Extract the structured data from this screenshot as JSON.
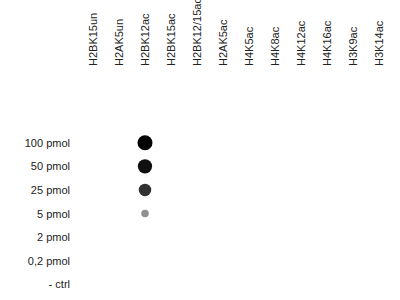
{
  "chart_data": {
    "type": "heatmap",
    "x": [
      "H2BK15un",
      "H2AK5un",
      "H2BK12ac",
      "H2BK15ac",
      "H2BK12/15ac",
      "H2AK5ac",
      "H4K5ac",
      "H4K8ac",
      "H4K12ac",
      "H4K16ac",
      "H3K9ac",
      "H3K14ac"
    ],
    "y": [
      "100 pmol",
      "50 pmol",
      "25 pmol",
      "5 pmol",
      "2 pmol",
      "0,2 pmol",
      "- ctrl"
    ],
    "values": [
      [
        0,
        0,
        100,
        0,
        0,
        0,
        0,
        0,
        0,
        0,
        0,
        0
      ],
      [
        0,
        0,
        90,
        0,
        0,
        0,
        0,
        0,
        0,
        0,
        0,
        0
      ],
      [
        0,
        0,
        70,
        0,
        0,
        0,
        0,
        0,
        0,
        0,
        0,
        0
      ],
      [
        0,
        0,
        25,
        0,
        0,
        0,
        0,
        0,
        0,
        0,
        0,
        0
      ],
      [
        0,
        0,
        0,
        0,
        0,
        0,
        0,
        0,
        0,
        0,
        0,
        0
      ],
      [
        0,
        0,
        0,
        0,
        0,
        0,
        0,
        0,
        0,
        0,
        0,
        0
      ],
      [
        0,
        0,
        0,
        0,
        0,
        0,
        0,
        0,
        0,
        0,
        0,
        0
      ]
    ],
    "color": "#000000"
  }
}
